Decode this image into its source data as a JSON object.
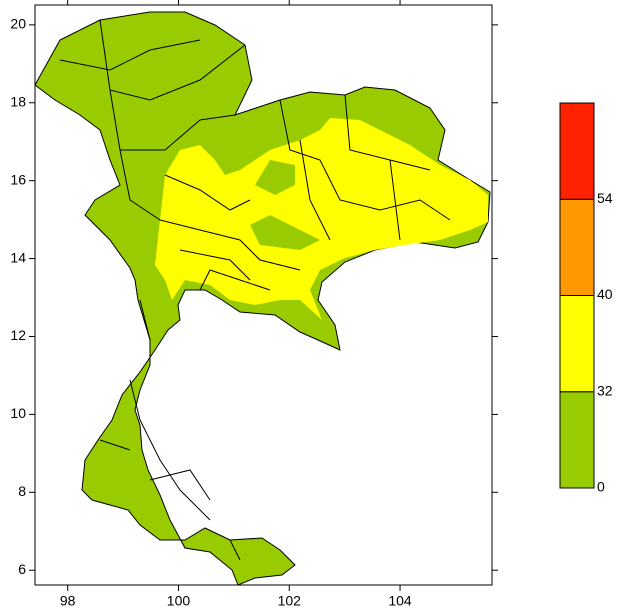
{
  "map": {
    "xlim": [
      97.41,
      105.66
    ],
    "ylim": [
      5.62,
      20.51
    ],
    "xticks": [
      98,
      100,
      102,
      104
    ],
    "yticks": [
      6,
      8,
      10,
      12,
      14,
      16,
      18,
      20
    ],
    "colorbar": {
      "levels": [
        0,
        32,
        40,
        54
      ],
      "colors": [
        "#99cc00",
        "#ffff00",
        "#ff9900",
        "#ff2200"
      ]
    }
  }
}
